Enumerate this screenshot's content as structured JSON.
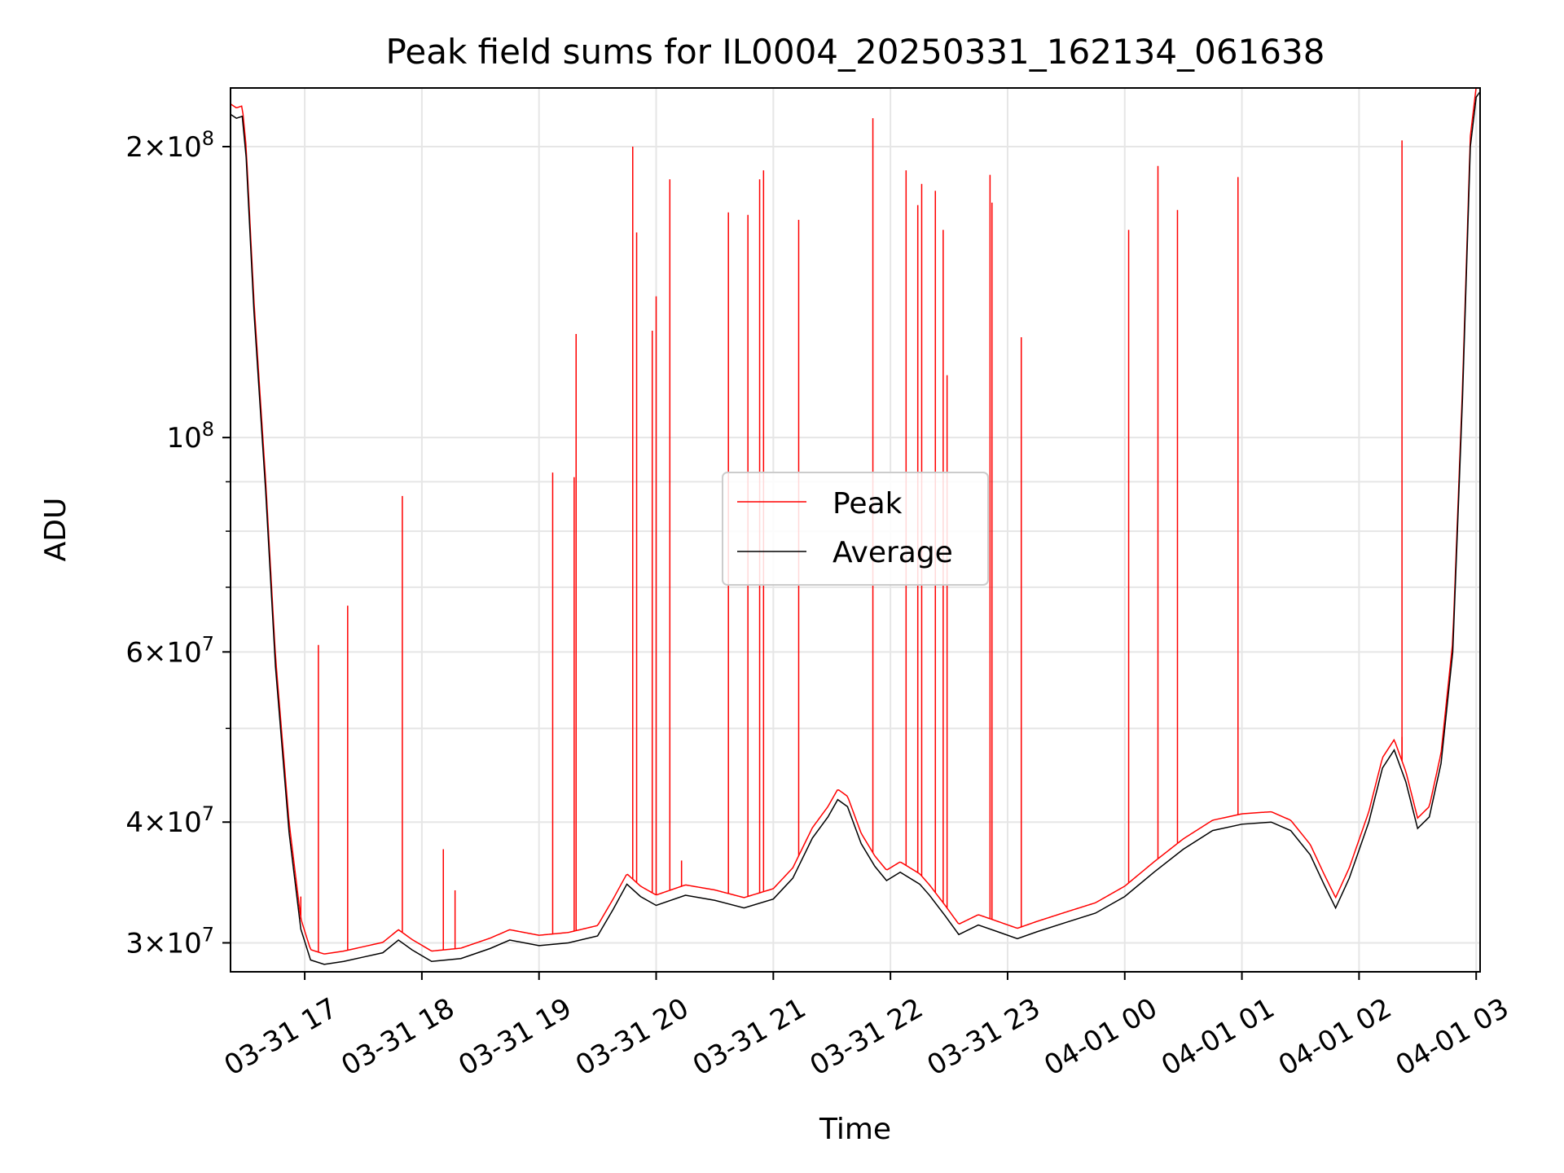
{
  "chart_data": {
    "type": "line",
    "title": "Peak field sums for IL0004_20250331_162134_061638",
    "xlabel": "Time",
    "ylabel": "ADU",
    "x_range": [
      "2025-03-31 16:22",
      "2025-04-01 03:02"
    ],
    "ylim": [
      28000000,
      230000000
    ],
    "yscale": "log",
    "grid": true,
    "legend_position": "center",
    "x_ticks": [
      {
        "t": "2025-03-31 17:00",
        "label": "03-31 17"
      },
      {
        "t": "2025-03-31 18:00",
        "label": "03-31 18"
      },
      {
        "t": "2025-03-31 19:00",
        "label": "03-31 19"
      },
      {
        "t": "2025-03-31 20:00",
        "label": "03-31 20"
      },
      {
        "t": "2025-03-31 21:00",
        "label": "03-31 21"
      },
      {
        "t": "2025-03-31 22:00",
        "label": "03-31 22"
      },
      {
        "t": "2025-03-31 23:00",
        "label": "03-31 23"
      },
      {
        "t": "2025-04-01 00:00",
        "label": "04-01 00"
      },
      {
        "t": "2025-04-01 01:00",
        "label": "04-01 01"
      },
      {
        "t": "2025-04-01 02:00",
        "label": "04-01 02"
      },
      {
        "t": "2025-04-01 03:00",
        "label": "04-01 03"
      }
    ],
    "y_ticks": [
      {
        "value": 30000000,
        "mant": "3",
        "exp": "7"
      },
      {
        "value": 40000000,
        "mant": "4",
        "exp": "7"
      },
      {
        "value": 60000000,
        "mant": "6",
        "exp": "7"
      },
      {
        "value": 100000000,
        "mant": "",
        "exp": "8"
      },
      {
        "value": 200000000,
        "mant": "2",
        "exp": "8"
      }
    ],
    "y_minor_ticks": [
      50000000,
      70000000,
      80000000,
      90000000
    ],
    "colors": {
      "peak": "#ff0000",
      "average": "#000000"
    },
    "series": [
      {
        "name": "Average",
        "color": "#000000",
        "points": [
          [
            "2025-03-31 16:22",
            216000000
          ],
          [
            "2025-03-31 16:25",
            214000000
          ],
          [
            "2025-03-31 16:28",
            215000000
          ],
          [
            "2025-03-31 16:30",
            195000000
          ],
          [
            "2025-03-31 16:34",
            135000000
          ],
          [
            "2025-03-31 16:40",
            88000000
          ],
          [
            "2025-03-31 16:45",
            58000000
          ],
          [
            "2025-03-31 16:52",
            39000000
          ],
          [
            "2025-03-31 16:58",
            31000000
          ],
          [
            "2025-03-31 17:03",
            28800000
          ],
          [
            "2025-03-31 17:10",
            28500000
          ],
          [
            "2025-03-31 17:20",
            28700000
          ],
          [
            "2025-03-31 17:30",
            29000000
          ],
          [
            "2025-03-31 17:40",
            29300000
          ],
          [
            "2025-03-31 17:48",
            30200000
          ],
          [
            "2025-03-31 17:55",
            29500000
          ],
          [
            "2025-03-31 18:05",
            28700000
          ],
          [
            "2025-03-31 18:20",
            28900000
          ],
          [
            "2025-03-31 18:35",
            29600000
          ],
          [
            "2025-03-31 18:45",
            30200000
          ],
          [
            "2025-03-31 19:00",
            29800000
          ],
          [
            "2025-03-31 19:15",
            30000000
          ],
          [
            "2025-03-31 19:30",
            30500000
          ],
          [
            "2025-03-31 19:38",
            32500000
          ],
          [
            "2025-03-31 19:45",
            34500000
          ],
          [
            "2025-03-31 19:52",
            33500000
          ],
          [
            "2025-03-31 20:00",
            32800000
          ],
          [
            "2025-03-31 20:15",
            33600000
          ],
          [
            "2025-03-31 20:30",
            33200000
          ],
          [
            "2025-03-31 20:45",
            32600000
          ],
          [
            "2025-03-31 21:00",
            33300000
          ],
          [
            "2025-03-31 21:10",
            35000000
          ],
          [
            "2025-03-31 21:20",
            38500000
          ],
          [
            "2025-03-31 21:28",
            40500000
          ],
          [
            "2025-03-31 21:33",
            42200000
          ],
          [
            "2025-03-31 21:38",
            41500000
          ],
          [
            "2025-03-31 21:45",
            38000000
          ],
          [
            "2025-03-31 21:52",
            36000000
          ],
          [
            "2025-03-31 21:58",
            34800000
          ],
          [
            "2025-03-31 22:05",
            35500000
          ],
          [
            "2025-03-31 22:15",
            34500000
          ],
          [
            "2025-03-31 22:20",
            33600000
          ],
          [
            "2025-03-31 22:28",
            32000000
          ],
          [
            "2025-03-31 22:35",
            30600000
          ],
          [
            "2025-03-31 22:45",
            31300000
          ],
          [
            "2025-03-31 22:55",
            30800000
          ],
          [
            "2025-03-31 23:05",
            30300000
          ],
          [
            "2025-03-31 23:15",
            30800000
          ],
          [
            "2025-03-31 23:30",
            31500000
          ],
          [
            "2025-03-31 23:45",
            32200000
          ],
          [
            "2025-04-01 00:00",
            33500000
          ],
          [
            "2025-04-01 00:15",
            35500000
          ],
          [
            "2025-04-01 00:30",
            37500000
          ],
          [
            "2025-04-01 00:45",
            39200000
          ],
          [
            "2025-04-01 01:00",
            39800000
          ],
          [
            "2025-04-01 01:15",
            40000000
          ],
          [
            "2025-04-01 01:25",
            39200000
          ],
          [
            "2025-04-01 01:35",
            37000000
          ],
          [
            "2025-04-01 01:42",
            34500000
          ],
          [
            "2025-04-01 01:48",
            32600000
          ],
          [
            "2025-04-01 01:55",
            35000000
          ],
          [
            "2025-04-01 02:05",
            40000000
          ],
          [
            "2025-04-01 02:12",
            45500000
          ],
          [
            "2025-04-01 02:18",
            47500000
          ],
          [
            "2025-04-01 02:24",
            44000000
          ],
          [
            "2025-04-01 02:30",
            39400000
          ],
          [
            "2025-04-01 02:36",
            40500000
          ],
          [
            "2025-04-01 02:42",
            46000000
          ],
          [
            "2025-04-01 02:48",
            60000000
          ],
          [
            "2025-04-01 02:53",
            110000000
          ],
          [
            "2025-04-01 02:57",
            200000000
          ],
          [
            "2025-04-01 03:00",
            225000000
          ],
          [
            "2025-04-01 03:02",
            228000000
          ]
        ]
      },
      {
        "name": "Peak",
        "color": "#ff0000",
        "baseline_offset": 1.025,
        "spikes": [
          [
            "2025-03-31 16:58",
            33500000
          ],
          [
            "2025-03-31 17:07",
            61000000
          ],
          [
            "2025-03-31 17:22",
            67000000
          ],
          [
            "2025-03-31 17:50",
            87000000
          ],
          [
            "2025-03-31 18:11",
            37500000
          ],
          [
            "2025-03-31 18:17",
            34000000
          ],
          [
            "2025-03-31 19:07",
            92000000
          ],
          [
            "2025-03-31 19:18",
            91000000
          ],
          [
            "2025-03-31 19:19",
            128000000
          ],
          [
            "2025-03-31 19:48",
            200000000
          ],
          [
            "2025-03-31 19:50",
            163000000
          ],
          [
            "2025-03-31 19:58",
            129000000
          ],
          [
            "2025-03-31 20:00",
            140000000
          ],
          [
            "2025-03-31 20:07",
            185000000
          ],
          [
            "2025-03-31 20:13",
            36500000
          ],
          [
            "2025-03-31 20:37",
            171000000
          ],
          [
            "2025-03-31 20:47",
            170000000
          ],
          [
            "2025-03-31 20:53",
            185000000
          ],
          [
            "2025-03-31 20:55",
            189000000
          ],
          [
            "2025-03-31 21:13",
            168000000
          ],
          [
            "2025-03-31 21:51",
            214000000
          ],
          [
            "2025-03-31 22:08",
            189000000
          ],
          [
            "2025-03-31 22:14",
            174000000
          ],
          [
            "2025-03-31 22:16",
            183000000
          ],
          [
            "2025-03-31 22:23",
            180000000
          ],
          [
            "2025-03-31 22:27",
            164000000
          ],
          [
            "2025-03-31 22:29",
            116000000
          ],
          [
            "2025-03-31 22:51",
            187000000
          ],
          [
            "2025-03-31 22:52",
            175000000
          ],
          [
            "2025-03-31 23:07",
            127000000
          ],
          [
            "2025-04-01 00:02",
            164000000
          ],
          [
            "2025-04-01 00:17",
            191000000
          ],
          [
            "2025-04-01 00:27",
            172000000
          ],
          [
            "2025-04-01 00:58",
            186000000
          ],
          [
            "2025-04-01 02:22",
            49000000
          ],
          [
            "2025-04-01 02:22",
            203000000
          ]
        ]
      }
    ]
  }
}
